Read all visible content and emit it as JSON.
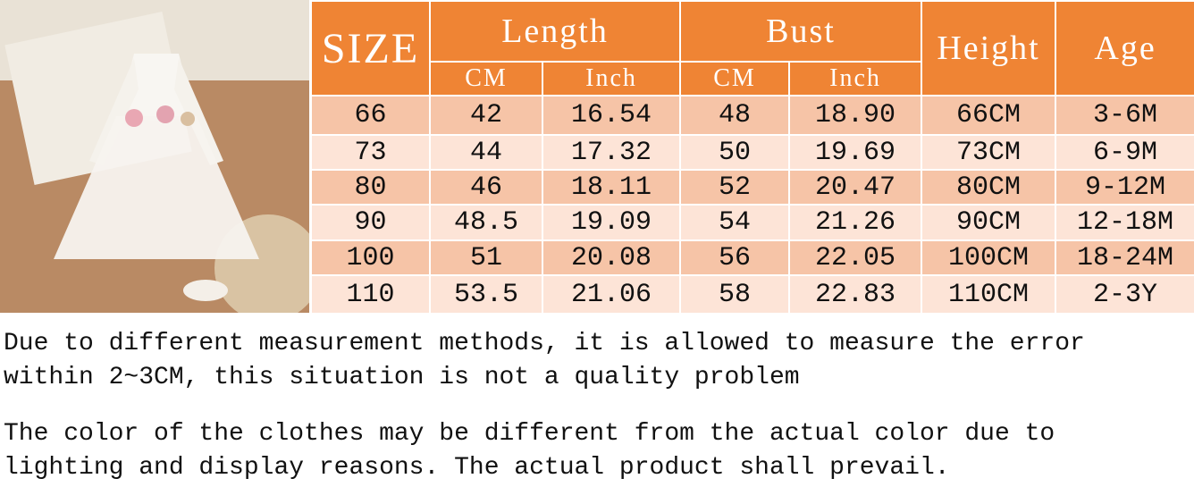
{
  "table": {
    "header": {
      "size": "SIZE",
      "length": "Length",
      "bust": "Bust",
      "height": "Height",
      "age": "Age"
    },
    "subheader": {
      "length_cm": "CM",
      "length_inch": "Inch",
      "bust_cm": "CM",
      "bust_inch": "Inch"
    },
    "rows": [
      [
        "66",
        "42",
        "16.54",
        "48",
        "18.90",
        "66CM",
        "3-6M"
      ],
      [
        "73",
        "44",
        "17.32",
        "50",
        "19.69",
        "73CM",
        "6-9M"
      ],
      [
        "80",
        "46",
        "18.11",
        "52",
        "20.47",
        "80CM",
        "9-12M"
      ],
      [
        "90",
        "48.5",
        "19.09",
        "54",
        "21.26",
        "90CM",
        "12-18M"
      ],
      [
        "100",
        "51",
        "20.08",
        "56",
        "22.05",
        "100CM",
        "18-24M"
      ],
      [
        "110",
        "53.5",
        "21.06",
        "58",
        "22.83",
        "110CM",
        "2-3Y"
      ]
    ]
  },
  "notes": [
    "Due to different measurement methods, it is allowed to measure the error within 2~3CM, this situation is not a quality problem",
    "The color of the clothes may be different from the actual color due to lighting and display reasons. The actual product shall prevail."
  ]
}
